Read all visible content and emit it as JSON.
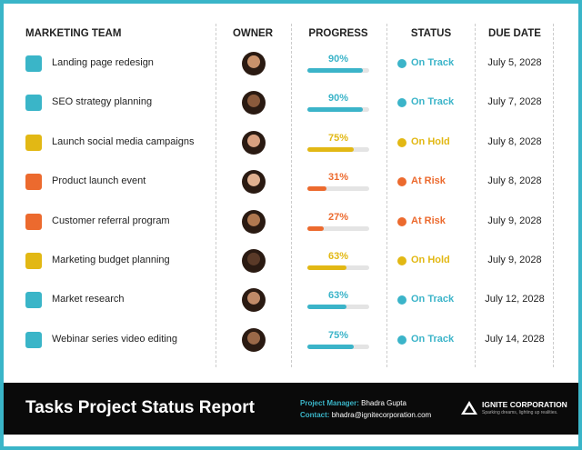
{
  "header": {
    "columns": [
      "MARKETING TEAM",
      "OWNER",
      "PROGRESS",
      "STATUS",
      "DUE DATE"
    ]
  },
  "table": {
    "rows": [
      {
        "task": "Landing page redesign",
        "progress": 90,
        "progress_label": "90%",
        "status": "On Track",
        "color": "#3bb4c9",
        "due": "July 5, 2028"
      },
      {
        "task": "SEO strategy planning",
        "progress": 90,
        "progress_label": "90%",
        "status": "On Track",
        "color": "#3bb4c9",
        "due": "July 7, 2028"
      },
      {
        "task": "Launch social media campaigns",
        "progress": 75,
        "progress_label": "75%",
        "status": "On Hold",
        "color": "#e2b814",
        "due": "July 8, 2028"
      },
      {
        "task": "Product launch event",
        "progress": 31,
        "progress_label": "31%",
        "status": "At Risk",
        "color": "#ec6a2e",
        "due": "July 8, 2028"
      },
      {
        "task": "Customer referral program",
        "progress": 27,
        "progress_label": "27%",
        "status": "At Risk",
        "color": "#ec6a2e",
        "due": "July 9, 2028"
      },
      {
        "task": "Marketing budget planning",
        "progress": 63,
        "progress_label": "63%",
        "status": "On Hold",
        "color": "#e2b814",
        "due": "July 9, 2028"
      },
      {
        "task": "Market research",
        "progress": 63,
        "progress_label": "63%",
        "status": "On Track",
        "color": "#3bb4c9",
        "due": "July 12, 2028"
      },
      {
        "task": "Webinar series video editing",
        "progress": 75,
        "progress_label": "75%",
        "status": "On Track",
        "color": "#3bb4c9",
        "due": "July 14, 2028"
      }
    ]
  },
  "footer": {
    "title": "Tasks Project Status Report",
    "manager_label": "Project Manager:",
    "manager": "Bhadra Gupta",
    "contact_label": "Contact:",
    "contact": "bhadra@ignitecorporation.com",
    "company": "IGNITE CORPORATION",
    "tagline": "Sparking dreams, lighting up realities."
  }
}
